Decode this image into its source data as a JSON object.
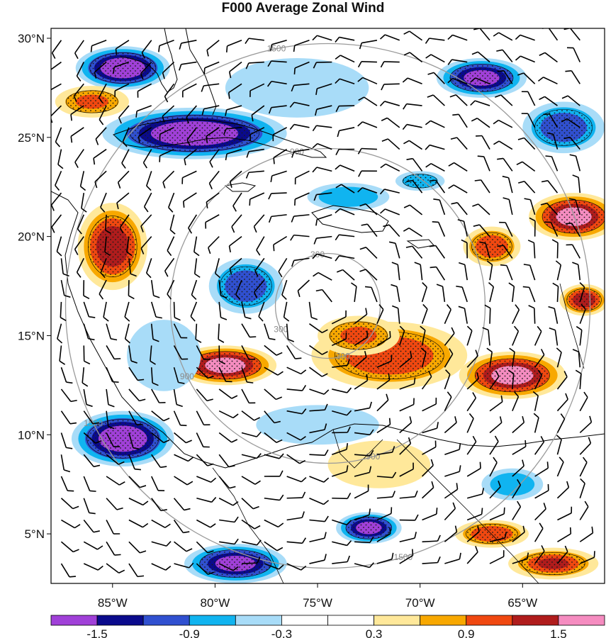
{
  "title": "F000 Average Zonal Wind",
  "map": {
    "lon_range": [
      -88,
      -61
    ],
    "lat_range": [
      2.5,
      30.5
    ],
    "lat_ticks": [
      {
        "lat": 30,
        "label": "30°N"
      },
      {
        "lat": 25,
        "label": "25°N"
      },
      {
        "lat": 20,
        "label": "20°N"
      },
      {
        "lat": 15,
        "label": "15°N"
      },
      {
        "lat": 10,
        "label": "10°N"
      },
      {
        "lat": 5,
        "label": "5°N"
      }
    ],
    "lon_ticks": [
      {
        "lon": -85,
        "label": "85°W"
      },
      {
        "lon": -80,
        "label": "80°W"
      },
      {
        "lon": -75,
        "label": "75°W"
      },
      {
        "lon": -70,
        "label": "70°W"
      },
      {
        "lon": -65,
        "label": "65°W"
      }
    ],
    "center": {
      "lon": -74.5,
      "lat": 16.5
    },
    "range_rings": [
      {
        "value": 300,
        "label": "300"
      },
      {
        "value": 900,
        "label": "900"
      },
      {
        "value": 1500,
        "label": "1500"
      }
    ],
    "colorbar": {
      "colors": [
        "#a040d8",
        "#0a0a8c",
        "#3050d0",
        "#10b4f0",
        "#a8dcf8",
        "#ffffff",
        "#ffffff",
        "#ffe89a",
        "#f8a800",
        "#f04810",
        "#b01c1c",
        "#f58cc0"
      ],
      "labels": [
        "-1.5",
        "-0.9",
        "-0.3",
        "0.3",
        "0.9",
        "1.5"
      ]
    },
    "anomaly_blobs": [
      {
        "lon": -84.5,
        "lat": 28.5,
        "rx": 2.3,
        "ry": 1.1,
        "level": -2.0
      },
      {
        "lon": -81.0,
        "lat": 25.2,
        "rx": 4.5,
        "ry": 1.3,
        "level": -2.0
      },
      {
        "lon": -67.0,
        "lat": 28.0,
        "rx": 2.2,
        "ry": 1.0,
        "level": -1.8
      },
      {
        "lon": -63.0,
        "lat": 25.5,
        "rx": 2.0,
        "ry": 1.3,
        "level": -1.2
      },
      {
        "lon": -84.5,
        "lat": 9.8,
        "rx": 2.5,
        "ry": 1.4,
        "level": -1.9
      },
      {
        "lon": -79.0,
        "lat": 3.5,
        "rx": 2.5,
        "ry": 1.0,
        "level": -1.6
      },
      {
        "lon": -72.5,
        "lat": 5.3,
        "rx": 1.6,
        "ry": 0.8,
        "level": -1.6
      },
      {
        "lon": -78.5,
        "lat": 17.5,
        "rx": 1.8,
        "ry": 1.4,
        "level": -1.0
      },
      {
        "lon": -73.5,
        "lat": 22.0,
        "rx": 2.0,
        "ry": 0.7,
        "level": -0.8
      },
      {
        "lon": -70.0,
        "lat": 22.8,
        "rx": 1.2,
        "ry": 0.5,
        "level": -0.9
      },
      {
        "lon": -85.0,
        "lat": 19.5,
        "rx": 1.7,
        "ry": 2.2,
        "level": 1.3
      },
      {
        "lon": -86.0,
        "lat": 26.8,
        "rx": 1.8,
        "ry": 0.8,
        "level": 0.9
      },
      {
        "lon": -79.5,
        "lat": 13.5,
        "rx": 2.5,
        "ry": 1.0,
        "level": 1.7
      },
      {
        "lon": -71.5,
        "lat": 14.0,
        "rx": 3.8,
        "ry": 1.7,
        "level": 1.0
      },
      {
        "lon": -65.5,
        "lat": 13.0,
        "rx": 2.6,
        "ry": 1.2,
        "level": 1.7
      },
      {
        "lon": -62.5,
        "lat": 21.0,
        "rx": 2.2,
        "ry": 1.2,
        "level": 1.6
      },
      {
        "lon": -66.5,
        "lat": 19.5,
        "rx": 1.4,
        "ry": 1.0,
        "level": 1.1
      },
      {
        "lon": -73.0,
        "lat": 15.0,
        "rx": 2.0,
        "ry": 1.0,
        "level": 0.9
      },
      {
        "lon": -66.5,
        "lat": 5.0,
        "rx": 1.8,
        "ry": 0.7,
        "level": 1.0
      },
      {
        "lon": -63.5,
        "lat": 3.5,
        "rx": 2.2,
        "ry": 0.8,
        "level": 1.2
      },
      {
        "lon": -72.0,
        "lat": 8.5,
        "rx": 2.5,
        "ry": 1.2,
        "level": 0.4
      },
      {
        "lon": -75.0,
        "lat": 10.5,
        "rx": 3.0,
        "ry": 1.0,
        "level": -0.4
      },
      {
        "lon": -82.5,
        "lat": 14.0,
        "rx": 1.8,
        "ry": 1.8,
        "level": -0.4
      },
      {
        "lon": -76.0,
        "lat": 27.5,
        "rx": 3.5,
        "ry": 1.5,
        "level": -0.5
      },
      {
        "lon": -62.0,
        "lat": 16.8,
        "rx": 1.2,
        "ry": 0.8,
        "level": 1.3
      },
      {
        "lon": -65.5,
        "lat": 7.5,
        "rx": 1.5,
        "ry": 0.8,
        "level": -0.8
      }
    ]
  }
}
